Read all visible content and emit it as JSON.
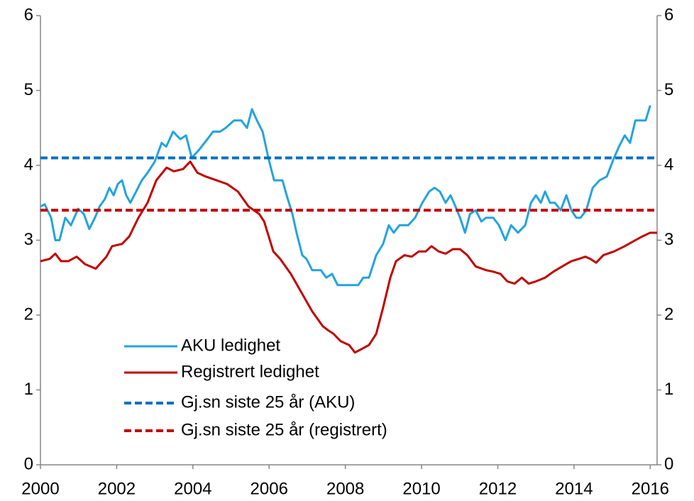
{
  "chart_data": {
    "type": "line",
    "xlim": [
      2000,
      2016.18
    ],
    "xticks": [
      2000,
      2002,
      2004,
      2006,
      2008,
      2010,
      2012,
      2014,
      2016
    ],
    "ylim": [
      0,
      6
    ],
    "yticks": [
      0,
      1,
      2,
      3,
      4,
      5,
      6
    ],
    "y2lim": [
      0,
      6
    ],
    "y2ticks": [
      0,
      1,
      2,
      3,
      4,
      5,
      6
    ],
    "grid": false,
    "legend": "lower left",
    "series": [
      {
        "name": "AKU ledighet",
        "color": "#24a3dd",
        "dashed": false,
        "x": [
          2000.0,
          2000.11,
          2000.28,
          2000.39,
          2000.5,
          2000.65,
          2000.8,
          2000.99,
          2001.14,
          2001.28,
          2001.43,
          2001.55,
          2001.69,
          2001.81,
          2001.92,
          2002.03,
          2002.14,
          2002.25,
          2002.36,
          2002.51,
          2002.66,
          2002.81,
          2003.0,
          2003.18,
          2003.3,
          2003.48,
          2003.67,
          2003.82,
          2003.97,
          2004.15,
          2004.38,
          2004.53,
          2004.71,
          2004.86,
          2005.08,
          2005.27,
          2005.42,
          2005.55,
          2005.68,
          2005.83,
          2005.98,
          2006.13,
          2006.35,
          2006.46,
          2006.61,
          2006.72,
          2006.87,
          2006.98,
          2007.13,
          2007.36,
          2007.5,
          2007.65,
          2007.8,
          2008.06,
          2008.34,
          2008.47,
          2008.62,
          2008.81,
          2008.99,
          2009.14,
          2009.27,
          2009.42,
          2009.65,
          2009.83,
          2010.02,
          2010.2,
          2010.34,
          2010.48,
          2010.63,
          2010.76,
          2010.89,
          2011.01,
          2011.14,
          2011.27,
          2011.42,
          2011.57,
          2011.69,
          2011.88,
          2012.03,
          2012.2,
          2012.35,
          2012.53,
          2012.72,
          2012.87,
          2013.0,
          2013.13,
          2013.24,
          2013.37,
          2013.5,
          2013.65,
          2013.8,
          2013.93,
          2014.06,
          2014.17,
          2014.32,
          2014.49,
          2014.67,
          2014.86,
          2015.05,
          2015.18,
          2015.33,
          2015.47,
          2015.61,
          2015.79,
          2015.88,
          2016.0
        ],
        "values": [
          3.45,
          3.48,
          3.3,
          3.0,
          3.0,
          3.3,
          3.2,
          3.42,
          3.35,
          3.15,
          3.3,
          3.45,
          3.55,
          3.7,
          3.6,
          3.75,
          3.8,
          3.6,
          3.5,
          3.65,
          3.8,
          3.9,
          4.05,
          4.3,
          4.25,
          4.45,
          4.35,
          4.4,
          4.1,
          4.2,
          4.35,
          4.45,
          4.45,
          4.5,
          4.6,
          4.6,
          4.5,
          4.75,
          4.6,
          4.45,
          4.1,
          3.8,
          3.8,
          3.6,
          3.35,
          3.1,
          2.8,
          2.75,
          2.6,
          2.6,
          2.5,
          2.55,
          2.4,
          2.4,
          2.4,
          2.5,
          2.5,
          2.8,
          2.95,
          3.2,
          3.1,
          3.2,
          3.2,
          3.3,
          3.5,
          3.65,
          3.7,
          3.65,
          3.5,
          3.6,
          3.45,
          3.3,
          3.1,
          3.35,
          3.4,
          3.25,
          3.3,
          3.3,
          3.2,
          3.0,
          3.2,
          3.1,
          3.2,
          3.5,
          3.6,
          3.5,
          3.65,
          3.5,
          3.5,
          3.4,
          3.6,
          3.4,
          3.3,
          3.3,
          3.4,
          3.7,
          3.8,
          3.85,
          4.1,
          4.25,
          4.4,
          4.3,
          4.6,
          4.6,
          4.6,
          4.8
        ]
      },
      {
        "name": "Registrert ledighet",
        "color": "#c00000",
        "dashed": false,
        "x": [
          2000.0,
          2000.24,
          2000.39,
          2000.54,
          2000.73,
          2000.95,
          2001.17,
          2001.45,
          2001.73,
          2001.88,
          2002.14,
          2002.33,
          2002.57,
          2002.81,
          2003.04,
          2003.31,
          2003.5,
          2003.74,
          2003.93,
          2004.12,
          2004.34,
          2004.62,
          2004.9,
          2005.18,
          2005.46,
          2005.74,
          2005.87,
          2006.11,
          2006.29,
          2006.57,
          2006.85,
          2007.13,
          2007.41,
          2007.54,
          2007.69,
          2007.88,
          2008.1,
          2008.25,
          2008.44,
          2008.62,
          2008.81,
          2008.99,
          2009.18,
          2009.33,
          2009.55,
          2009.74,
          2009.93,
          2010.11,
          2010.26,
          2010.45,
          2010.63,
          2010.82,
          2011.01,
          2011.2,
          2011.42,
          2011.69,
          2011.88,
          2012.07,
          2012.25,
          2012.44,
          2012.63,
          2012.81,
          2013.0,
          2013.24,
          2013.46,
          2013.69,
          2013.93,
          2014.12,
          2014.3,
          2014.43,
          2014.58,
          2014.77,
          2015.05,
          2015.33,
          2015.61,
          2015.79,
          2016.0,
          2016.18
        ],
        "values": [
          2.72,
          2.75,
          2.82,
          2.72,
          2.72,
          2.78,
          2.68,
          2.62,
          2.78,
          2.92,
          2.95,
          3.05,
          3.3,
          3.5,
          3.8,
          3.97,
          3.92,
          3.95,
          4.05,
          3.9,
          3.85,
          3.8,
          3.75,
          3.65,
          3.45,
          3.35,
          3.25,
          2.85,
          2.75,
          2.55,
          2.3,
          2.05,
          1.85,
          1.8,
          1.75,
          1.65,
          1.6,
          1.5,
          1.55,
          1.6,
          1.75,
          2.1,
          2.5,
          2.72,
          2.8,
          2.78,
          2.85,
          2.85,
          2.92,
          2.85,
          2.82,
          2.88,
          2.88,
          2.8,
          2.65,
          2.6,
          2.58,
          2.55,
          2.45,
          2.42,
          2.5,
          2.42,
          2.45,
          2.5,
          2.58,
          2.65,
          2.72,
          2.75,
          2.78,
          2.75,
          2.7,
          2.8,
          2.85,
          2.92,
          3.0,
          3.05,
          3.1,
          3.1
        ]
      },
      {
        "name": "Gj.sn siste 25 år (AKU)",
        "color": "#0070c0",
        "dashed": true,
        "x": [
          2000,
          2016.18
        ],
        "values": [
          4.1,
          4.1
        ]
      },
      {
        "name": "Gj.sn siste 25 år (registrert)",
        "color": "#c00000",
        "dashed": true,
        "x": [
          2000,
          2016.18
        ],
        "values": [
          3.4,
          3.4
        ]
      }
    ]
  }
}
